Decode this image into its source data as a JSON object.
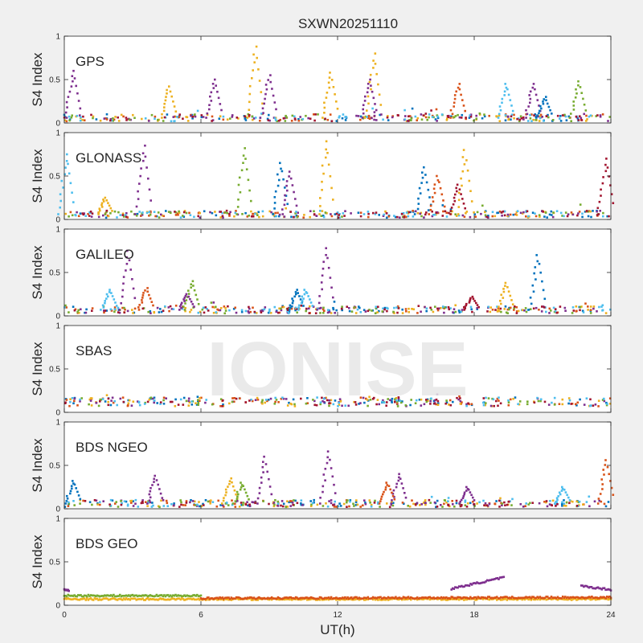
{
  "title": "SXWN20251110",
  "watermark": "IONISE",
  "colors": {
    "figure_bg": "#f0f0f0",
    "axes_bg": "#ffffff",
    "axis": "#262626",
    "watermark": "#e6e6e6"
  },
  "series_colors": [
    "#0072BD",
    "#D95319",
    "#EDB120",
    "#7E2F8E",
    "#77AC30",
    "#4DBEEE",
    "#A2142F"
  ],
  "chart_data": {
    "type": "scatter",
    "xlabel": "UT(h)",
    "ylabel": "S4 Index",
    "xlim": [
      0,
      24
    ],
    "xticks": [
      "0",
      "6",
      "12",
      "18",
      "24"
    ],
    "ylim": [
      0,
      1
    ],
    "yticks": [
      "0",
      "0.5",
      "1"
    ],
    "grid": false,
    "panels": [
      {
        "name": "GPS",
        "baseline": 0.06,
        "noise": 0.04,
        "spikes": [
          {
            "x": 0.4,
            "y": 0.6,
            "c": 3
          },
          {
            "x": 4.6,
            "y": 0.42,
            "c": 2
          },
          {
            "x": 6.6,
            "y": 0.5,
            "c": 3
          },
          {
            "x": 8.4,
            "y": 0.88,
            "c": 2
          },
          {
            "x": 9.0,
            "y": 0.55,
            "c": 3
          },
          {
            "x": 11.7,
            "y": 0.58,
            "c": 2
          },
          {
            "x": 13.6,
            "y": 0.8,
            "c": 2
          },
          {
            "x": 13.4,
            "y": 0.5,
            "c": 3
          },
          {
            "x": 17.3,
            "y": 0.45,
            "c": 1
          },
          {
            "x": 19.4,
            "y": 0.45,
            "c": 5
          },
          {
            "x": 20.6,
            "y": 0.45,
            "c": 3
          },
          {
            "x": 22.6,
            "y": 0.48,
            "c": 4
          },
          {
            "x": 21.1,
            "y": 0.3,
            "c": 0
          }
        ]
      },
      {
        "name": "GLONASS",
        "baseline": 0.06,
        "noise": 0.04,
        "spikes": [
          {
            "x": 0.1,
            "y": 0.75,
            "c": 5
          },
          {
            "x": 1.8,
            "y": 0.25,
            "c": 2
          },
          {
            "x": 3.5,
            "y": 0.85,
            "c": 3
          },
          {
            "x": 7.9,
            "y": 0.82,
            "c": 4
          },
          {
            "x": 9.5,
            "y": 0.65,
            "c": 0
          },
          {
            "x": 9.9,
            "y": 0.55,
            "c": 3
          },
          {
            "x": 11.5,
            "y": 0.9,
            "c": 2
          },
          {
            "x": 15.8,
            "y": 0.6,
            "c": 0
          },
          {
            "x": 17.6,
            "y": 0.8,
            "c": 2
          },
          {
            "x": 17.3,
            "y": 0.4,
            "c": 6
          },
          {
            "x": 23.8,
            "y": 0.7,
            "c": 6
          },
          {
            "x": 16.4,
            "y": 0.5,
            "c": 1
          }
        ]
      },
      {
        "name": "GALILEO",
        "baseline": 0.07,
        "noise": 0.04,
        "spikes": [
          {
            "x": 2.8,
            "y": 0.75,
            "c": 3
          },
          {
            "x": 3.6,
            "y": 0.32,
            "c": 1
          },
          {
            "x": 5.6,
            "y": 0.4,
            "c": 4
          },
          {
            "x": 5.4,
            "y": 0.25,
            "c": 3
          },
          {
            "x": 11.5,
            "y": 0.78,
            "c": 3
          },
          {
            "x": 10.2,
            "y": 0.3,
            "c": 0
          },
          {
            "x": 10.6,
            "y": 0.3,
            "c": 5
          },
          {
            "x": 19.4,
            "y": 0.38,
            "c": 2
          },
          {
            "x": 20.8,
            "y": 0.7,
            "c": 0
          },
          {
            "x": 17.9,
            "y": 0.22,
            "c": 6
          },
          {
            "x": 2.0,
            "y": 0.3,
            "c": 5
          }
        ]
      },
      {
        "name": "SBAS",
        "baseline": 0.12,
        "noise": 0.05,
        "spikes": []
      },
      {
        "name": "BDS NGEO",
        "baseline": 0.06,
        "noise": 0.04,
        "spikes": [
          {
            "x": 0.4,
            "y": 0.32,
            "c": 0
          },
          {
            "x": 4.0,
            "y": 0.38,
            "c": 3
          },
          {
            "x": 7.3,
            "y": 0.35,
            "c": 2
          },
          {
            "x": 7.8,
            "y": 0.3,
            "c": 4
          },
          {
            "x": 8.8,
            "y": 0.6,
            "c": 3
          },
          {
            "x": 11.6,
            "y": 0.66,
            "c": 3
          },
          {
            "x": 14.7,
            "y": 0.4,
            "c": 3
          },
          {
            "x": 14.2,
            "y": 0.3,
            "c": 1
          },
          {
            "x": 23.8,
            "y": 0.56,
            "c": 1
          },
          {
            "x": 21.9,
            "y": 0.25,
            "c": 5
          },
          {
            "x": 17.7,
            "y": 0.25,
            "c": 3
          }
        ]
      },
      {
        "name": "BDS GEO",
        "baseline": 0.08,
        "noise": 0.01,
        "spikes": [],
        "segments": [
          {
            "x0": 0.0,
            "x1": 6.0,
            "y0": 0.11,
            "y1": 0.11,
            "c": 4
          },
          {
            "x0": 0.0,
            "x1": 24.0,
            "y0": 0.07,
            "y1": 0.07,
            "c": 2
          },
          {
            "x0": 6.0,
            "x1": 24.0,
            "y0": 0.08,
            "y1": 0.09,
            "c": 1
          },
          {
            "x0": 17.0,
            "x1": 19.3,
            "y0": 0.19,
            "y1": 0.32,
            "c": 3
          },
          {
            "x0": 22.7,
            "x1": 24.0,
            "y0": 0.22,
            "y1": 0.18,
            "c": 3
          },
          {
            "x0": 0.0,
            "x1": 0.2,
            "y0": 0.18,
            "y1": 0.17,
            "c": 3
          }
        ]
      }
    ]
  }
}
